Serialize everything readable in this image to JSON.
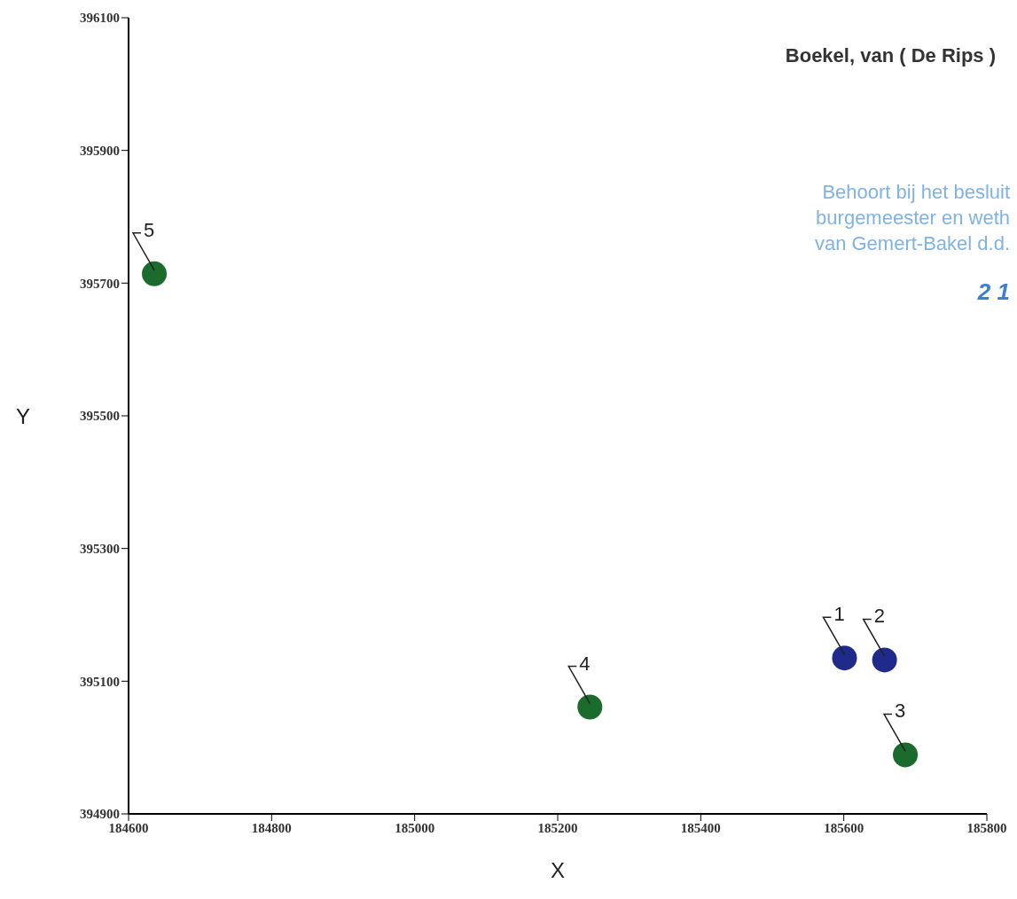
{
  "chart_data": {
    "type": "scatter",
    "title": "Boekel, van ( De Rips )",
    "xlabel": "X",
    "ylabel": "Y",
    "x": [
      185601,
      185657,
      185686,
      185245,
      184636
    ],
    "series": [
      {
        "values": [
          395135,
          395132,
          394989,
          395061,
          395714
        ],
        "colors": [
          "#1f2a8a",
          "#1f2a8a",
          "#1b6b2c",
          "#1b6b2c",
          "#1b6b2c"
        ]
      }
    ],
    "xlim": [
      184600,
      185800
    ],
    "xticks": [
      184600,
      184800,
      185000,
      185200,
      185400,
      185600,
      185800
    ],
    "ylim": [
      394900,
      396100
    ],
    "yticks": [
      394900,
      395100,
      395300,
      395500,
      395700,
      395900,
      396100
    ],
    "grid": false,
    "legend": false,
    "marker": "circle",
    "annotations": [
      {
        "text": "1",
        "x": 185601,
        "y": 395135
      },
      {
        "text": "2",
        "x": 185657,
        "y": 395132
      },
      {
        "text": "3",
        "x": 185686,
        "y": 394989
      },
      {
        "text": "4",
        "x": 185245,
        "y": 395061
      },
      {
        "text": "5",
        "x": 184636,
        "y": 395714
      },
      "Behoort bij het besluit",
      "burgemeester en weth",
      "van Gemert-Bakel d.d.",
      "2 1"
    ]
  }
}
